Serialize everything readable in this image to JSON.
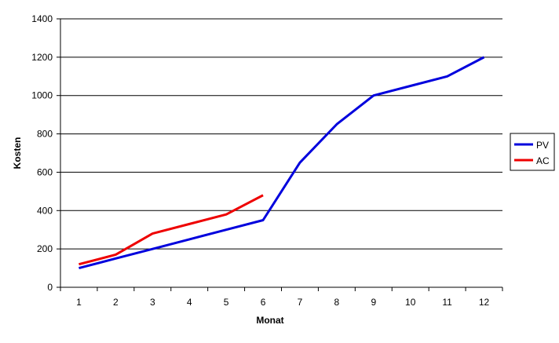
{
  "chart_data": {
    "type": "line",
    "x_label": "Monat",
    "y_label": "Kosten",
    "categories": [
      "1",
      "2",
      "3",
      "4",
      "5",
      "6",
      "7",
      "8",
      "9",
      "10",
      "11",
      "12"
    ],
    "series": [
      {
        "name": "PV",
        "color": "#0000dd",
        "values": [
          100,
          150,
          200,
          250,
          300,
          350,
          650,
          850,
          1000,
          1050,
          1100,
          1200
        ]
      },
      {
        "name": "AC",
        "color": "#ee0000",
        "values": [
          120,
          170,
          280,
          330,
          380,
          480,
          null,
          null,
          null,
          null,
          null,
          null
        ]
      }
    ],
    "ylim": [
      0,
      1400
    ],
    "yticks": [
      0,
      200,
      400,
      600,
      800,
      1000,
      1200,
      1400
    ],
    "grid": true,
    "legend": "right"
  }
}
